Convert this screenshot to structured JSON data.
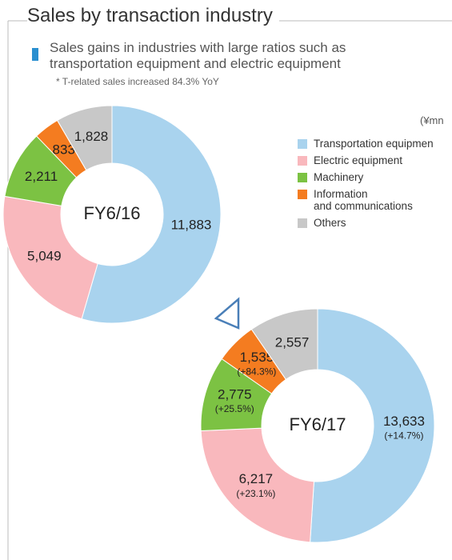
{
  "header": {
    "title": "Sales by transaction industry",
    "subtitle": "Sales gains in industries with large ratios such as\ntransportation equipment and electric equipment",
    "note": "* T-related sales increased 84.3% YoY",
    "unit": "(¥mn"
  },
  "chart_data": [
    {
      "type": "donut",
      "center_label": "FY6/16",
      "categories": [
        "Transportation equipmen",
        "Electric equipment",
        "Machinery",
        "Information\nand communications",
        "Others"
      ],
      "colors": [
        "#a9d3ee",
        "#f9b8bd",
        "#7cc243",
        "#f47c20",
        "#c8c8c8"
      ],
      "values": [
        11883,
        5049,
        2211,
        833,
        1828
      ],
      "value_labels": [
        "11,883",
        "5,049",
        "2,211",
        "833",
        "1,828"
      ]
    },
    {
      "type": "donut",
      "center_label": "FY6/17",
      "values": [
        13633,
        6217,
        2775,
        1535,
        2557
      ],
      "value_labels": [
        "13,633",
        "6,217",
        "2,775",
        "1,535",
        "2,557"
      ],
      "annotations": [
        "(+14.7%)",
        "(+23.1%)",
        "(+25.5%)",
        "(+84.3%)",
        null
      ]
    }
  ]
}
